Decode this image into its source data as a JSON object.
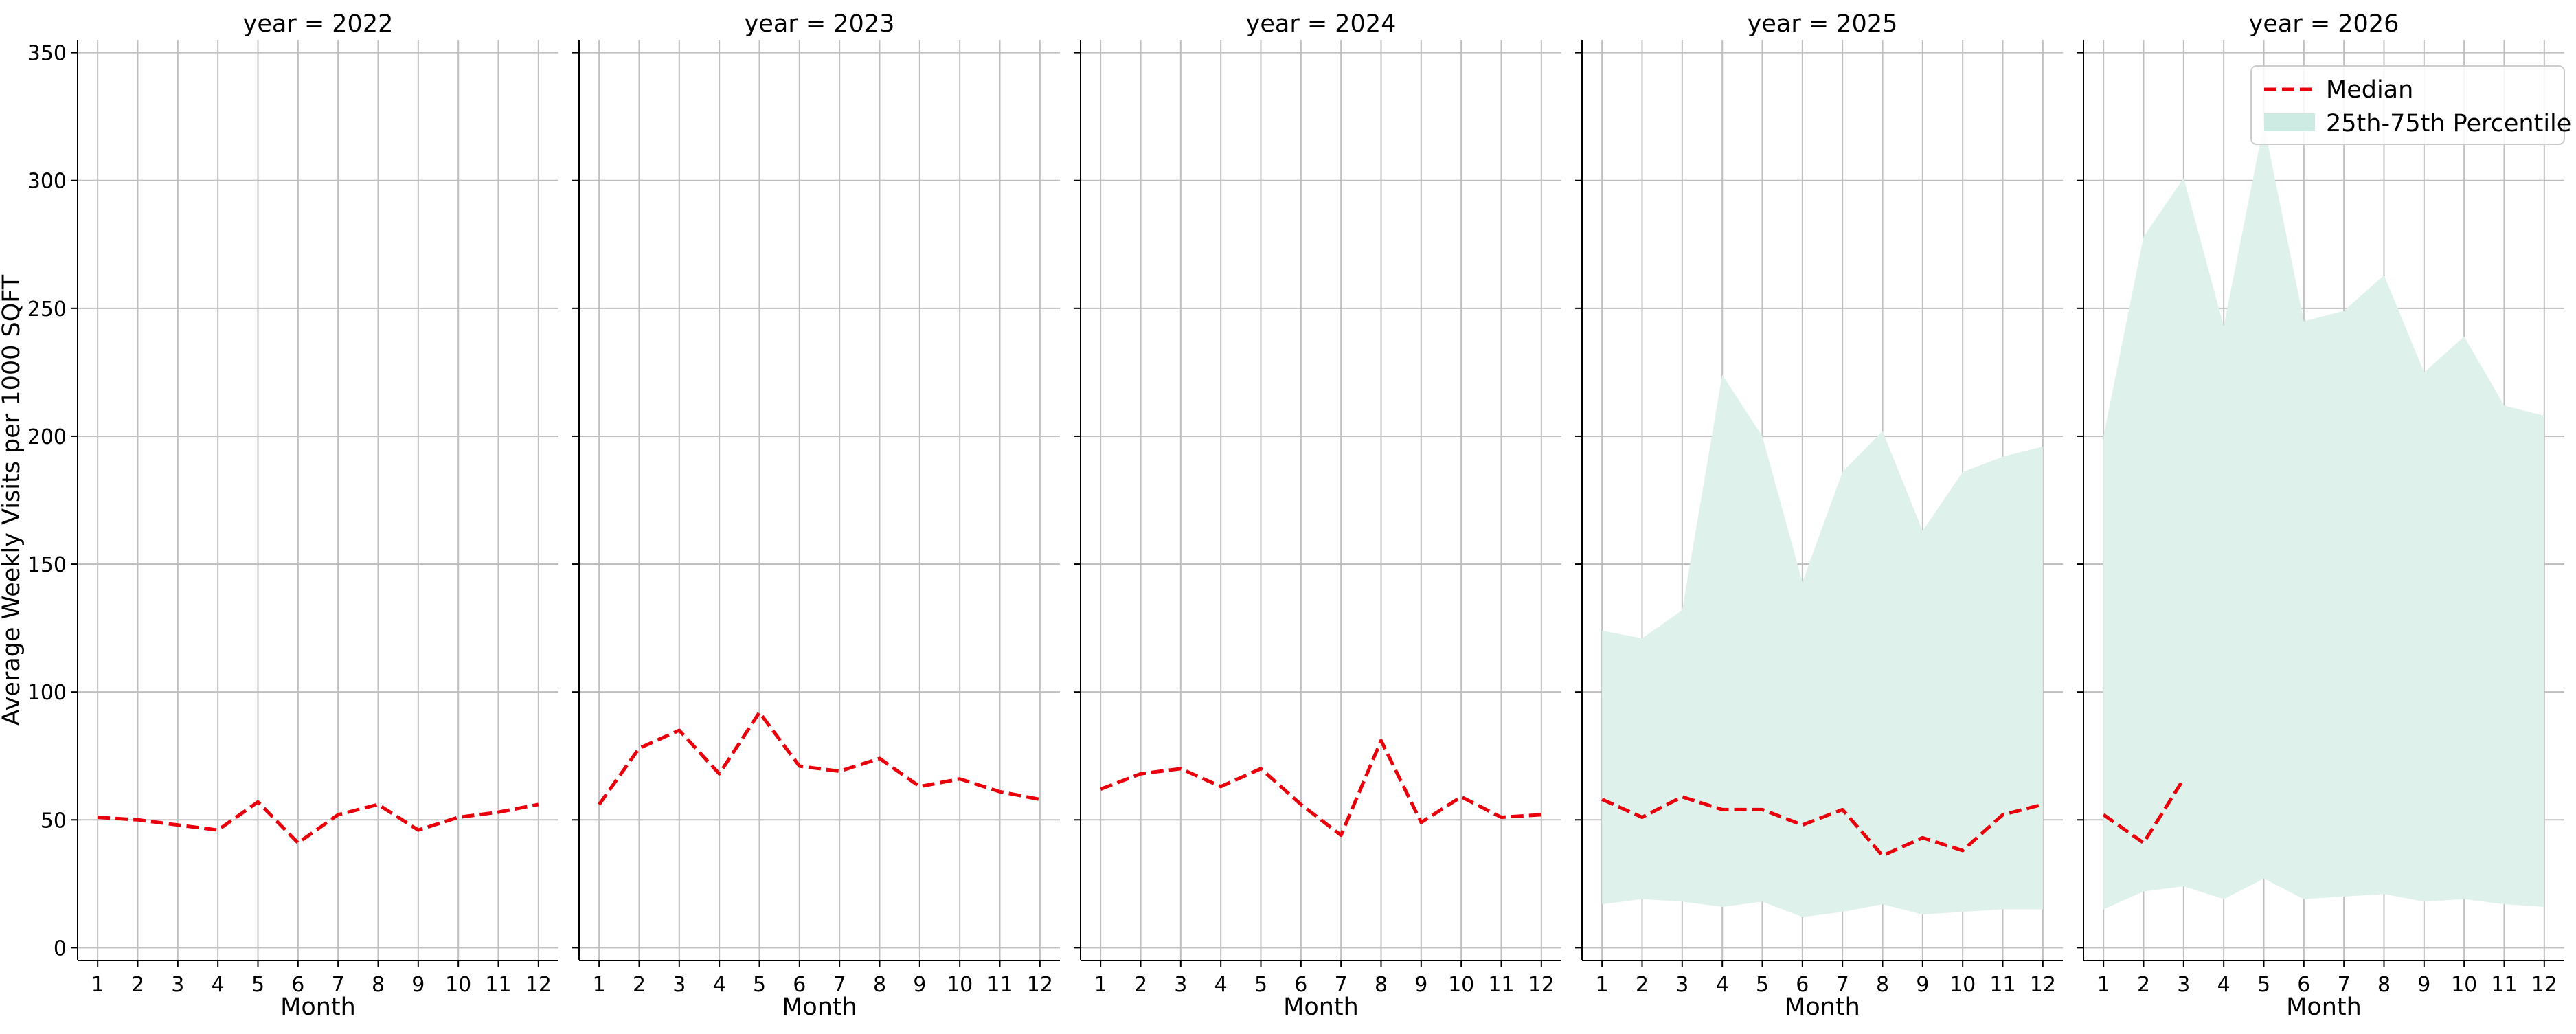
{
  "chart_data": {
    "type": "line",
    "ylabel": "Average Weekly Visits per 1000 SQFT",
    "xlabel": "Month",
    "ylim": [
      -5,
      355
    ],
    "xlim": [
      0.5,
      12.5
    ],
    "yticks": [
      0,
      50,
      100,
      150,
      200,
      250,
      300,
      350
    ],
    "xticks": [
      1,
      2,
      3,
      4,
      5,
      6,
      7,
      8,
      9,
      10,
      11,
      12
    ],
    "grid": true,
    "legend": {
      "position": "top-right",
      "entries": [
        {
          "label": "Median",
          "style": "dashed-line",
          "color": "#e8000b"
        },
        {
          "label": "25th-75th Percentile",
          "style": "band",
          "color": "#cdebe3"
        }
      ]
    },
    "colors": {
      "median": "#e8000b",
      "band": "#dff1eb",
      "grid": "#bfbfbf",
      "axis": "#000000"
    },
    "panels": [
      {
        "title": "year = 2022",
        "median": {
          "x": [
            1,
            2,
            3,
            4,
            5,
            6,
            7,
            8,
            9,
            10,
            11,
            12
          ],
          "y": [
            51,
            50,
            48,
            46,
            57,
            41,
            52,
            56,
            46,
            51,
            53,
            56
          ]
        },
        "band": null
      },
      {
        "title": "year = 2023",
        "median": {
          "x": [
            1,
            2,
            3,
            4,
            5,
            6,
            7,
            8,
            9,
            10,
            11,
            12
          ],
          "y": [
            56,
            78,
            85,
            68,
            92,
            71,
            69,
            74,
            63,
            66,
            61,
            58
          ]
        },
        "band": null
      },
      {
        "title": "year = 2024",
        "median": {
          "x": [
            1,
            2,
            3,
            4,
            5,
            6,
            7,
            8,
            9,
            10,
            11,
            12
          ],
          "y": [
            62,
            68,
            70,
            63,
            70,
            56,
            44,
            81,
            49,
            59,
            51,
            52
          ]
        },
        "band": null
      },
      {
        "title": "year = 2025",
        "median": {
          "x": [
            1,
            2,
            3,
            4,
            5,
            6,
            7,
            8,
            9,
            10,
            11,
            12
          ],
          "y": [
            58,
            51,
            59,
            54,
            54,
            48,
            54,
            36,
            43,
            38,
            52,
            56
          ]
        },
        "band": {
          "x": [
            1,
            2,
            3,
            4,
            5,
            6,
            7,
            8,
            9,
            10,
            11,
            12
          ],
          "low": [
            17,
            19,
            18,
            16,
            18,
            12,
            14,
            17,
            13,
            14,
            15,
            15
          ],
          "high": [
            124,
            121,
            132,
            224,
            200,
            143,
            186,
            202,
            163,
            186,
            192,
            196
          ]
        }
      },
      {
        "title": "year = 2026",
        "median": {
          "x": [
            1,
            2,
            3
          ],
          "y": [
            52,
            41,
            66
          ]
        },
        "band": {
          "x": [
            1,
            2,
            3,
            4,
            5,
            6,
            7,
            8,
            9,
            10,
            11,
            12
          ],
          "low": [
            15,
            22,
            24,
            19,
            27,
            19,
            20,
            21,
            18,
            19,
            17,
            16
          ],
          "high": [
            200,
            278,
            301,
            243,
            322,
            245,
            249,
            263,
            225,
            239,
            212,
            208
          ]
        }
      }
    ]
  }
}
